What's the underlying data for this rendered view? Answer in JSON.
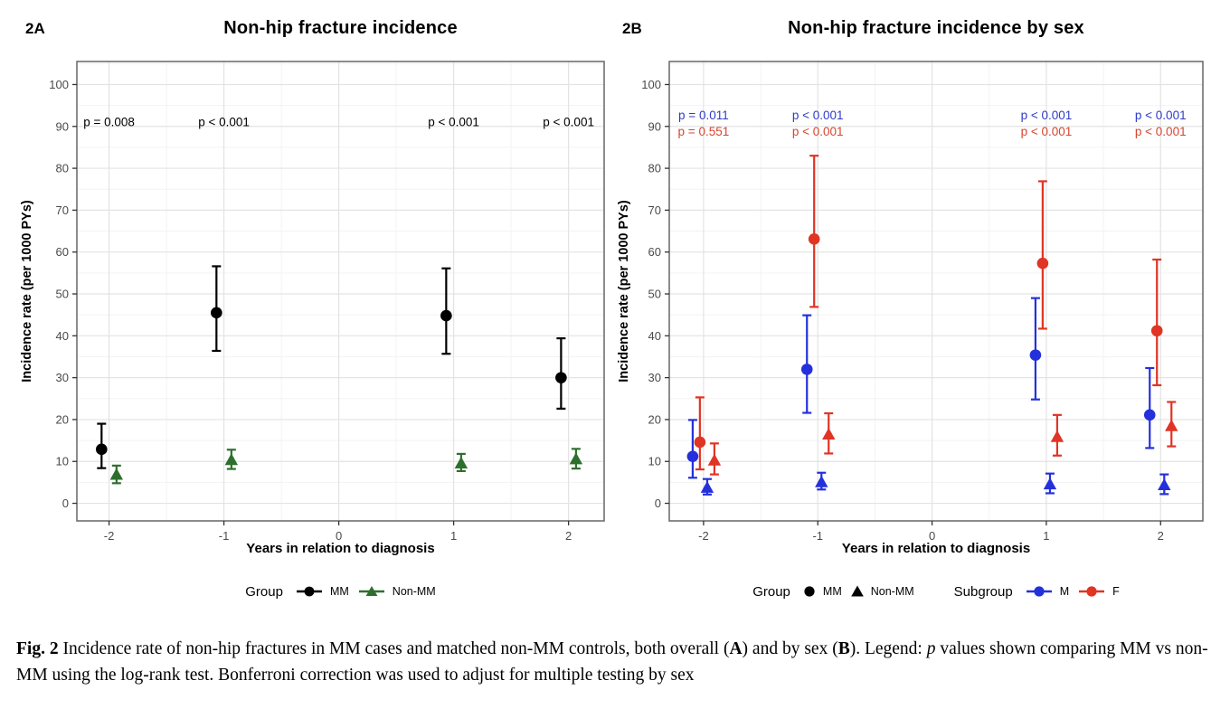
{
  "chart_data": [
    {
      "type": "scatter",
      "panel_label": "2A",
      "title": "Non-hip fracture incidence",
      "xlabel": "Years in relation to diagnosis",
      "ylabel": "Incidence rate (per 1000 PYs)",
      "xticks": [
        -2,
        -1,
        0,
        1,
        2
      ],
      "yticks": [
        0,
        10,
        20,
        30,
        40,
        50,
        60,
        70,
        80,
        90,
        100
      ],
      "ylim": [
        -4.2,
        105.5
      ],
      "grid": true,
      "legend_position": "bottom",
      "annotations": [
        {
          "x": -2,
          "y": 91,
          "label": "p = 0.008",
          "color": "#000000"
        },
        {
          "x": -1,
          "y": 91,
          "label": "p < 0.001",
          "color": "#000000"
        },
        {
          "x": 1,
          "y": 91,
          "label": "p < 0.001",
          "color": "#000000"
        },
        {
          "x": 2,
          "y": 91,
          "label": "p < 0.001",
          "color": "#000000"
        }
      ],
      "series": [
        {
          "name": "MM",
          "marker": "circle",
          "color": "#000000",
          "dodge": -0.065,
          "points": [
            {
              "x": -2,
              "y": 12.9,
              "lo": 8.4,
              "hi": 19.0
            },
            {
              "x": -1,
              "y": 45.5,
              "lo": 36.4,
              "hi": 56.6
            },
            {
              "x": 1,
              "y": 44.8,
              "lo": 35.7,
              "hi": 56.1
            },
            {
              "x": 2,
              "y": 30.0,
              "lo": 22.6,
              "hi": 39.4
            }
          ]
        },
        {
          "name": "Non-MM",
          "marker": "triangle",
          "color": "#2e6f2e",
          "dodge": 0.065,
          "points": [
            {
              "x": -2,
              "y": 6.8,
              "lo": 4.8,
              "hi": 9.0
            },
            {
              "x": -1,
              "y": 10.3,
              "lo": 8.2,
              "hi": 12.8
            },
            {
              "x": 1,
              "y": 9.5,
              "lo": 7.7,
              "hi": 11.8
            },
            {
              "x": 2,
              "y": 10.5,
              "lo": 8.3,
              "hi": 13.0
            }
          ]
        }
      ],
      "legend": {
        "title": "Group",
        "items": [
          {
            "label": "MM",
            "marker": "circle-line",
            "color": "#000000"
          },
          {
            "label": "Non-MM",
            "marker": "triangle-line",
            "color": "#2e6f2e"
          }
        ]
      }
    },
    {
      "type": "scatter",
      "panel_label": "2B",
      "title": "Non-hip fracture incidence by sex",
      "xlabel": "Years in relation to diagnosis",
      "ylabel": "Incidence rate (per 1000 PYs)",
      "xticks": [
        -2,
        -1,
        0,
        1,
        2
      ],
      "yticks": [
        0,
        10,
        20,
        30,
        40,
        50,
        60,
        70,
        80,
        90,
        100
      ],
      "ylim": [
        -4.2,
        105.5
      ],
      "grid": true,
      "legend_position": "bottom",
      "annotations": [
        {
          "x": -2,
          "y": 92.6,
          "label": "p = 0.011",
          "color": "#2d3bc9"
        },
        {
          "x": -1,
          "y": 92.6,
          "label": "p < 0.001",
          "color": "#2d3bc9"
        },
        {
          "x": 1,
          "y": 92.6,
          "label": "p < 0.001",
          "color": "#2d3bc9"
        },
        {
          "x": 2,
          "y": 92.6,
          "label": "p < 0.001",
          "color": "#2d3bc9"
        },
        {
          "x": -2,
          "y": 88.8,
          "label": "p = 0.551",
          "color": "#d6452f"
        },
        {
          "x": -1,
          "y": 88.8,
          "label": "p < 0.001",
          "color": "#d6452f"
        },
        {
          "x": 1,
          "y": 88.8,
          "label": "p < 0.001",
          "color": "#d6452f"
        },
        {
          "x": 2,
          "y": 88.8,
          "label": "p < 0.001",
          "color": "#d6452f"
        }
      ],
      "series": [
        {
          "name": "MM M",
          "marker": "circle",
          "color": "#2430dc",
          "dodge": -0.095,
          "points": [
            {
              "x": -2,
              "y": 11.2,
              "lo": 6.1,
              "hi": 19.9
            },
            {
              "x": -1,
              "y": 32.0,
              "lo": 21.6,
              "hi": 44.9
            },
            {
              "x": 1,
              "y": 35.4,
              "lo": 24.8,
              "hi": 49.0
            },
            {
              "x": 2,
              "y": 21.1,
              "lo": 13.2,
              "hi": 32.3
            }
          ]
        },
        {
          "name": "MM F",
          "marker": "circle",
          "color": "#e03424",
          "dodge": -0.032,
          "points": [
            {
              "x": -2,
              "y": 14.6,
              "lo": 8.1,
              "hi": 25.3
            },
            {
              "x": -1,
              "y": 63.1,
              "lo": 46.9,
              "hi": 83.0
            },
            {
              "x": 1,
              "y": 57.3,
              "lo": 41.7,
              "hi": 76.9
            },
            {
              "x": 2,
              "y": 41.2,
              "lo": 28.2,
              "hi": 58.2
            }
          ]
        },
        {
          "name": "Non-MM M",
          "marker": "triangle",
          "color": "#2430dc",
          "dodge": 0.032,
          "points": [
            {
              "x": -2,
              "y": 3.7,
              "lo": 2.1,
              "hi": 5.8
            },
            {
              "x": -1,
              "y": 5.0,
              "lo": 3.3,
              "hi": 7.3
            },
            {
              "x": 1,
              "y": 4.5,
              "lo": 2.4,
              "hi": 7.1
            },
            {
              "x": 2,
              "y": 4.3,
              "lo": 2.2,
              "hi": 6.9
            }
          ]
        },
        {
          "name": "Non-MM F",
          "marker": "triangle",
          "color": "#e03424",
          "dodge": 0.095,
          "points": [
            {
              "x": -2,
              "y": 10.2,
              "lo": 6.9,
              "hi": 14.3
            },
            {
              "x": -1,
              "y": 16.4,
              "lo": 11.9,
              "hi": 21.5
            },
            {
              "x": 1,
              "y": 15.8,
              "lo": 11.4,
              "hi": 21.1
            },
            {
              "x": 2,
              "y": 18.4,
              "lo": 13.6,
              "hi": 24.2
            }
          ]
        }
      ],
      "legend": {
        "group_title": "Group",
        "group_items": [
          {
            "label": "MM",
            "marker": "circle",
            "color": "#000000"
          },
          {
            "label": "Non-MM",
            "marker": "triangle",
            "color": "#000000"
          }
        ],
        "subgroup_title": "Subgroup",
        "subgroup_items": [
          {
            "label": "M",
            "marker": "circle-line",
            "color": "#2430dc"
          },
          {
            "label": "F",
            "marker": "circle-line",
            "color": "#e03424"
          }
        ]
      }
    }
  ],
  "caption": {
    "fig_label": "Fig. 2",
    "text_1": "  Incidence rate of non-hip fractures in MM cases and matched non-MM controls, both overall (",
    "bold_a": "A",
    "text_2": ") and by sex (",
    "bold_b": "B",
    "text_3": "). Legend: ",
    "italic_p": "p",
    "text_4": " values shown comparing MM vs non-MM using the log-rank test. Bonferroni correction was used to adjust for multiple testing by sex"
  },
  "style_colors": {
    "grid_major": "#e3e3e3",
    "grid_minor": "#f3f3f3",
    "panel_border": "#666666",
    "tick_label": "#4a4a4a"
  }
}
